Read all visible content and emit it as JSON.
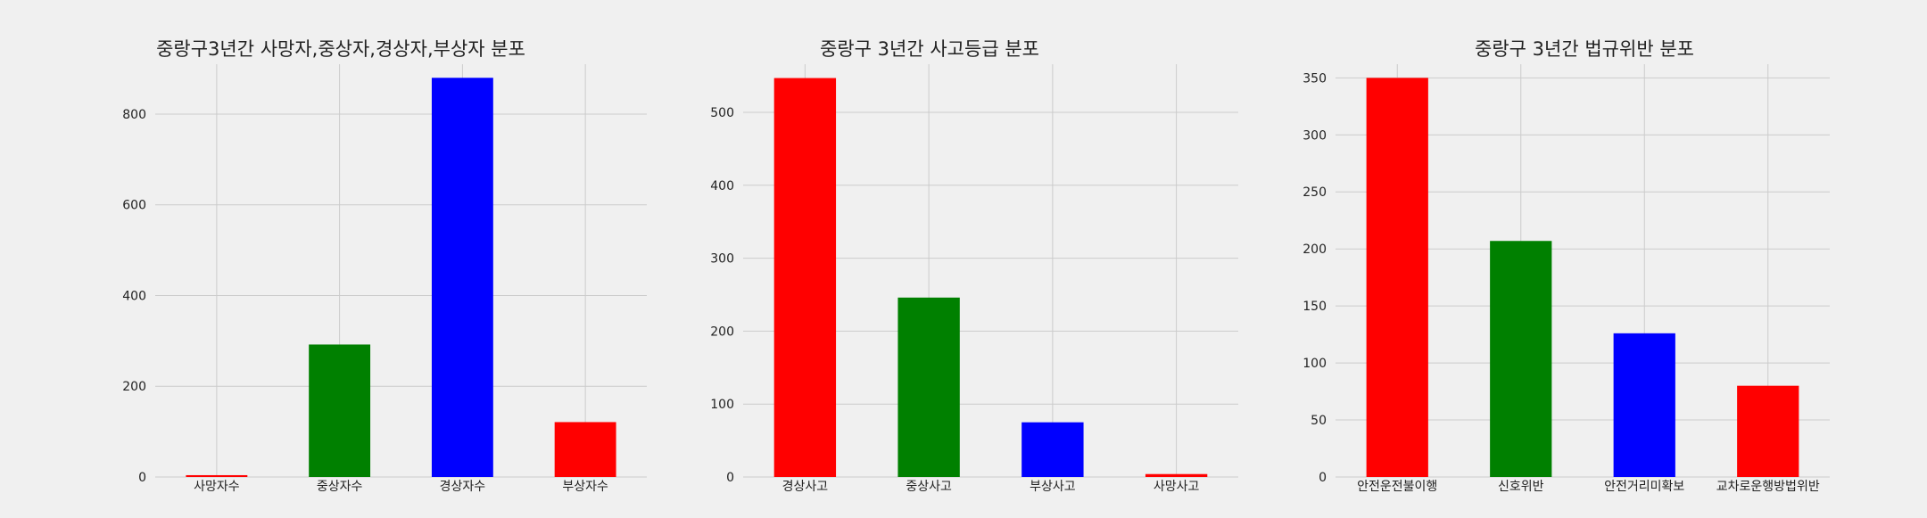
{
  "chart_data": [
    {
      "type": "bar",
      "title": "중랑구3년간 사망자,중상자,경상자,부상자 분포",
      "categories": [
        "사망자수",
        "중상자수",
        "경상자수",
        "부상자수"
      ],
      "values": [
        4,
        292,
        880,
        121
      ],
      "colors": [
        "#ff0000",
        "#008000",
        "#0000ff",
        "#ff0000"
      ],
      "ylim": [
        0,
        910
      ],
      "yticks": [
        0,
        200,
        400,
        600,
        800
      ],
      "grid": true
    },
    {
      "type": "bar",
      "title": "중랑구 3년간 사고등급 분포",
      "categories": [
        "경상사고",
        "중상사고",
        "부상사고",
        "사망사고"
      ],
      "values": [
        547,
        246,
        75,
        4
      ],
      "colors": [
        "#ff0000",
        "#008000",
        "#0000ff",
        "#ff0000"
      ],
      "ylim": [
        0,
        566
      ],
      "yticks": [
        0,
        100,
        200,
        300,
        400,
        500
      ],
      "grid": true
    },
    {
      "type": "bar",
      "title": "중랑구 3년간 법규위반 분포",
      "categories": [
        "안전운전불이행",
        "신호위반",
        "안전거리미확보",
        "교차로운행방법위반"
      ],
      "values": [
        350,
        207,
        126,
        80
      ],
      "colors": [
        "#ff0000",
        "#008000",
        "#0000ff",
        "#ff0000"
      ],
      "ylim": [
        0,
        362
      ],
      "yticks": [
        0,
        50,
        100,
        150,
        200,
        250,
        300,
        350
      ],
      "grid": true
    }
  ]
}
